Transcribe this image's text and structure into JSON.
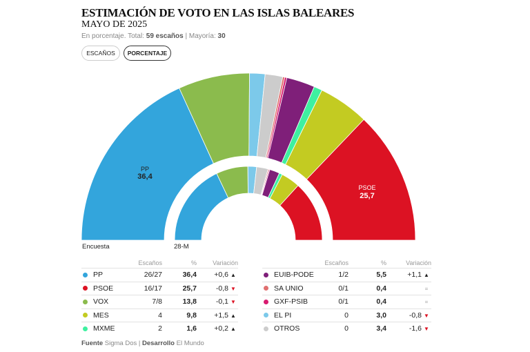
{
  "header": {
    "title": "ESTIMACIÓN DE VOTO EN LAS ISLAS BALEARES",
    "subtitle": "MAYO DE 2025",
    "meta_prefix": "En porcentaje. Total: ",
    "meta_total": "59 escaños",
    "meta_sep": " | Mayoría: ",
    "meta_majority": "30"
  },
  "toggle": {
    "seats_label": "ESCAÑOS",
    "percent_label": "PORCENTAJE",
    "active": "PORCENTAJE"
  },
  "chart_data": {
    "type": "pie",
    "subtype": "double-ring hemicycle",
    "ring_labels": {
      "outer": "Encuesta",
      "inner": "28-M"
    },
    "parties_order": [
      "PP",
      "VOX",
      "EL PI",
      "OTROS",
      "SA UNIO",
      "GXF-PSIB",
      "EUIB-PODE",
      "MXME",
      "MES",
      "PSOE"
    ],
    "colors": {
      "PP": "#33a5dc",
      "VOX": "#8bbb4d",
      "EL PI": "#7cc9ea",
      "OTROS": "#cccccc",
      "SA UNIO": "#e07070",
      "GXF-PSIB": "#d81b70",
      "EUIB-PODE": "#7f1f79",
      "MXME": "#3ef0a0",
      "MES": "#c3cb22",
      "PSOE": "#dc1223"
    },
    "encuesta": {
      "PP": 36.4,
      "VOX": 13.8,
      "EL PI": 3.0,
      "OTROS": 3.4,
      "SA UNIO": 0.4,
      "GXF-PSIB": 0.4,
      "EUIB-PODE": 5.5,
      "MXME": 1.6,
      "MES": 9.8,
      "PSOE": 25.7
    },
    "previous_28m": {
      "PP": 35.8,
      "VOX": 13.9,
      "EL PI": 3.8,
      "OTROS": 5.0,
      "SA UNIO": 0.4,
      "GXF-PSIB": 0.4,
      "EUIB-PODE": 4.4,
      "MXME": 1.4,
      "MES": 8.3,
      "PSOE": 26.5
    },
    "slice_labels": [
      {
        "party": "PP",
        "value": "36,4"
      },
      {
        "party": "PSOE",
        "value": "25,7"
      }
    ]
  },
  "table": {
    "headers": {
      "seats": "Escaños",
      "pct": "%",
      "var": "Variación"
    },
    "left": [
      {
        "party": "PP",
        "seats": "26/27",
        "pct": "36,4",
        "var": "+0,6",
        "trend": "up",
        "color": "#33a5dc"
      },
      {
        "party": "PSOE",
        "seats": "16/17",
        "pct": "25,7",
        "var": "-0,8",
        "trend": "down",
        "color": "#dc1223"
      },
      {
        "party": "VOX",
        "seats": "7/8",
        "pct": "13,8",
        "var": "-0,1",
        "trend": "down",
        "color": "#8bbb4d"
      },
      {
        "party": "MES",
        "seats": "4",
        "pct": "9,8",
        "var": "+1,5",
        "trend": "up",
        "color": "#c3cb22"
      },
      {
        "party": "MXME",
        "seats": "2",
        "pct": "1,6",
        "var": "+0,2",
        "trend": "up",
        "color": "#3ef0a0"
      }
    ],
    "right": [
      {
        "party": "EUIB-PODE",
        "seats": "1/2",
        "pct": "5,5",
        "var": "+1,1",
        "trend": "up",
        "color": "#7f1f79"
      },
      {
        "party": "SA UNIO",
        "seats": "0/1",
        "pct": "0,4",
        "var": "",
        "trend": "eq",
        "color": "#e07070"
      },
      {
        "party": "GXF-PSIB",
        "seats": "0/1",
        "pct": "0,4",
        "var": "",
        "trend": "eq",
        "color": "#d81b70"
      },
      {
        "party": "EL PI",
        "seats": "0",
        "pct": "3,0",
        "var": "-0,8",
        "trend": "down",
        "color": "#7cc9ea"
      },
      {
        "party": "OTROS",
        "seats": "0",
        "pct": "3,4",
        "var": "-1,6",
        "trend": "down",
        "color": "#cccccc"
      }
    ]
  },
  "footer": {
    "source_label": "Fuente",
    "source": " Sigma Dos | ",
    "dev_label": "Desarrollo",
    "dev": " El Mundo"
  }
}
